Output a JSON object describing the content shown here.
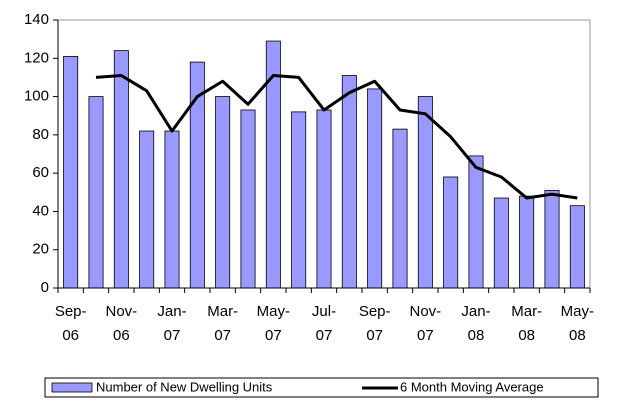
{
  "chart_data": {
    "type": "bar",
    "categories": [
      "Sep-06",
      null,
      "Nov-06",
      null,
      "Jan-07",
      null,
      "Mar-07",
      null,
      "May-07",
      null,
      "Jul-07",
      null,
      "Sep-07",
      null,
      "Nov-07",
      null,
      "Jan-08",
      null,
      "Mar-08",
      null,
      "May-08"
    ],
    "series": [
      {
        "name": "Number of New Dwelling Units",
        "type": "bar",
        "color": "#9999ff",
        "values": [
          121,
          100,
          124,
          82,
          82,
          118,
          100,
          93,
          129,
          92,
          93,
          111,
          104,
          83,
          100,
          58,
          69,
          47,
          48,
          51,
          43
        ]
      },
      {
        "name": "6 Month Moving Average",
        "type": "line",
        "color": "#000000",
        "values": [
          null,
          110,
          111,
          103,
          82,
          100,
          108,
          96,
          111,
          110,
          93,
          102,
          108,
          93,
          91,
          79,
          63,
          58,
          47,
          49,
          47
        ]
      }
    ],
    "ylim": [
      0,
      140
    ],
    "yticks": [
      0,
      20,
      40,
      60,
      80,
      100,
      120,
      140
    ],
    "grid": false,
    "legend": "bottom"
  }
}
